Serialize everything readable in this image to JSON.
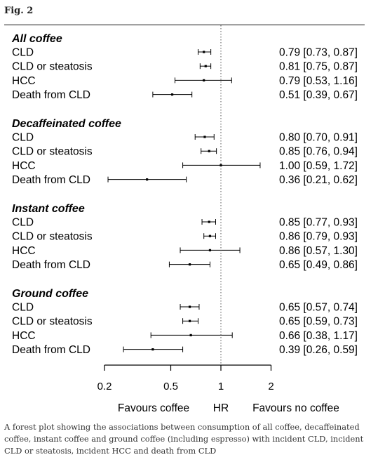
{
  "figure": {
    "label": "Fig. 2",
    "caption": "A forest plot showing the associations between consumption of all coffee, decaffeinated coffee, instant coffee and ground coffee (including espresso) with incident CLD, incident CLD or steatosis, incident HCC and death from CLD"
  },
  "chart_data": {
    "type": "forest",
    "x_scale": "log",
    "xlim": [
      0.2,
      2
    ],
    "reference_line": 1,
    "ticks": [
      {
        "value": 0.2,
        "label": "0.2"
      },
      {
        "value": 0.5,
        "label": "0.5"
      },
      {
        "value": 1,
        "label": "1"
      },
      {
        "value": 2,
        "label": "2"
      }
    ],
    "xlabel": "HR",
    "left_note": "Favours coffee",
    "right_note": "Favours no coffee",
    "groups": [
      {
        "title": "All coffee",
        "rows": [
          {
            "label": "CLD",
            "hr": 0.79,
            "lo": 0.73,
            "hi": 0.87,
            "ci_text": "0.79 [0.73, 0.87]"
          },
          {
            "label": "CLD or steatosis",
            "hr": 0.81,
            "lo": 0.75,
            "hi": 0.87,
            "ci_text": "0.81 [0.75, 0.87]"
          },
          {
            "label": "HCC",
            "hr": 0.79,
            "lo": 0.53,
            "hi": 1.16,
            "ci_text": "0.79 [0.53, 1.16]"
          },
          {
            "label": "Death from CLD",
            "hr": 0.51,
            "lo": 0.39,
            "hi": 0.67,
            "ci_text": "0.51 [0.39, 0.67]"
          }
        ]
      },
      {
        "title": "Decaffeinated coffee",
        "rows": [
          {
            "label": "CLD",
            "hr": 0.8,
            "lo": 0.7,
            "hi": 0.91,
            "ci_text": "0.80 [0.70, 0.91]"
          },
          {
            "label": "CLD or steatosis",
            "hr": 0.85,
            "lo": 0.76,
            "hi": 0.94,
            "ci_text": "0.85 [0.76, 0.94]"
          },
          {
            "label": "HCC",
            "hr": 1.0,
            "lo": 0.59,
            "hi": 1.72,
            "ci_text": "1.00 [0.59, 1.72]"
          },
          {
            "label": "Death from CLD",
            "hr": 0.36,
            "lo": 0.21,
            "hi": 0.62,
            "ci_text": "0.36 [0.21, 0.62]"
          }
        ]
      },
      {
        "title": "Instant coffee",
        "rows": [
          {
            "label": "CLD",
            "hr": 0.85,
            "lo": 0.77,
            "hi": 0.93,
            "ci_text": "0.85 [0.77, 0.93]"
          },
          {
            "label": "CLD or steatosis",
            "hr": 0.86,
            "lo": 0.79,
            "hi": 0.93,
            "ci_text": "0.86 [0.79, 0.93]"
          },
          {
            "label": "HCC",
            "hr": 0.86,
            "lo": 0.57,
            "hi": 1.3,
            "ci_text": "0.86 [0.57, 1.30]"
          },
          {
            "label": "Death from CLD",
            "hr": 0.65,
            "lo": 0.49,
            "hi": 0.86,
            "ci_text": "0.65 [0.49, 0.86]"
          }
        ]
      },
      {
        "title": "Ground coffee",
        "rows": [
          {
            "label": "CLD",
            "hr": 0.65,
            "lo": 0.57,
            "hi": 0.74,
            "ci_text": "0.65 [0.57, 0.74]"
          },
          {
            "label": "CLD or steatosis",
            "hr": 0.65,
            "lo": 0.59,
            "hi": 0.73,
            "ci_text": "0.65 [0.59, 0.73]"
          },
          {
            "label": "HCC",
            "hr": 0.66,
            "lo": 0.38,
            "hi": 1.17,
            "ci_text": "0.66 [0.38, 1.17]"
          },
          {
            "label": "Death from CLD",
            "hr": 0.39,
            "lo": 0.26,
            "hi": 0.59,
            "ci_text": "0.39 [0.26, 0.59]"
          }
        ]
      }
    ]
  }
}
